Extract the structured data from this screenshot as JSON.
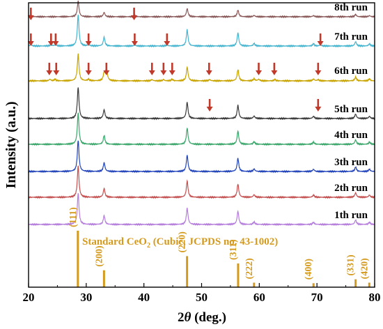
{
  "chart_data": {
    "type": "line",
    "xlabel_italic": "θ",
    "xlabel_prefix": "2",
    "xlabel_suffix": " (deg.)",
    "ylabel": "Intensity (a.u.)",
    "xlim": [
      20,
      80
    ],
    "xticks": [
      "20",
      "30",
      "40",
      "50",
      "60",
      "70",
      "80"
    ],
    "grid": false,
    "legend": "none",
    "peaks": [
      {
        "x": 28.6,
        "h": 1.0
      },
      {
        "x": 33.1,
        "h": 0.28
      },
      {
        "x": 47.5,
        "h": 0.52
      },
      {
        "x": 56.3,
        "h": 0.42
      },
      {
        "x": 59.1,
        "h": 0.08
      },
      {
        "x": 69.4,
        "h": 0.07
      },
      {
        "x": 76.7,
        "h": 0.14
      },
      {
        "x": 79.1,
        "h": 0.07
      }
    ],
    "series": [
      {
        "name": "1th run",
        "color": "#b57edc",
        "scale": 1.0,
        "impurity_peaks": []
      },
      {
        "name": "2th run",
        "color": "#c45050",
        "scale": 1.0,
        "impurity_peaks": []
      },
      {
        "name": "3th run",
        "color": "#2244bb",
        "scale": 1.0,
        "impurity_peaks": []
      },
      {
        "name": "4th run",
        "color": "#3aa66a",
        "scale": 1.0,
        "impurity_peaks": []
      },
      {
        "name": "5th run",
        "color": "#3a3a3a",
        "scale": 1.0,
        "impurity_peaks": []
      },
      {
        "name": "6th run",
        "color": "#c8a400",
        "scale": 0.85,
        "impurity_peaks": [
          {
            "x": 23.7,
            "h": 0.05
          },
          {
            "x": 24.6,
            "h": 0.05
          },
          {
            "x": 30.4,
            "h": 0.05
          },
          {
            "x": 33.5,
            "h": 0.42
          },
          {
            "x": 41.4,
            "h": 0.04
          },
          {
            "x": 43.4,
            "h": 0.04
          },
          {
            "x": 44.9,
            "h": 0.05
          },
          {
            "x": 51.4,
            "h": 0.04
          },
          {
            "x": 59.9,
            "h": 0.05
          },
          {
            "x": 62.7,
            "h": 0.04
          },
          {
            "x": 70.2,
            "h": 0.04
          }
        ]
      },
      {
        "name": "7th run",
        "color": "#45b5cf",
        "scale": 1.0,
        "impurity_peaks": [
          {
            "x": 20.4,
            "h": 0.05
          },
          {
            "x": 23.9,
            "h": 0.05
          },
          {
            "x": 24.7,
            "h": 0.05
          },
          {
            "x": 30.4,
            "h": 0.05
          },
          {
            "x": 38.4,
            "h": 0.04
          },
          {
            "x": 44.0,
            "h": 0.04
          },
          {
            "x": 70.6,
            "h": 0.04
          }
        ]
      },
      {
        "name": "8th run",
        "color": "#8b5a5a",
        "scale": 0.5,
        "impurity_peaks": [
          {
            "x": 20.4,
            "h": 0.05
          },
          {
            "x": 38.4,
            "h": 0.04
          }
        ]
      }
    ],
    "arrows": [
      {
        "run": "8th run",
        "x": [
          20.4,
          38.3
        ]
      },
      {
        "run": "7th run",
        "x": [
          20.4,
          23.9,
          24.7,
          30.4,
          38.4,
          44.0,
          70.6
        ]
      },
      {
        "run": "6th run",
        "x": [
          23.6,
          24.8,
          30.4,
          33.5,
          41.4,
          43.4,
          44.9,
          51.3,
          59.9,
          62.6,
          70.2
        ]
      },
      {
        "run": "5th run",
        "x": [
          51.4,
          70.2
        ]
      }
    ],
    "arrow_color": "#c0392b",
    "reference": {
      "label_main": "Standard CeO",
      "label_sub": "2",
      "label_rest": " (Cubic, JCPDS no. 43-1002)",
      "color": "#d49a1e",
      "lines": [
        {
          "hkl": "(111)",
          "x": 28.55,
          "rel": 1.0
        },
        {
          "hkl": "(200)",
          "x": 33.08,
          "rel": 0.3
        },
        {
          "hkl": "(220)",
          "x": 47.48,
          "rel": 0.55
        },
        {
          "hkl": "(311)",
          "x": 56.33,
          "rel": 0.42
        },
        {
          "hkl": "(222)",
          "x": 59.09,
          "rel": 0.08
        },
        {
          "hkl": "(400)",
          "x": 69.4,
          "rel": 0.07
        },
        {
          "hkl": "(331)",
          "x": 76.7,
          "rel": 0.14
        },
        {
          "hkl": "(420)",
          "x": 79.07,
          "rel": 0.08
        }
      ]
    }
  }
}
